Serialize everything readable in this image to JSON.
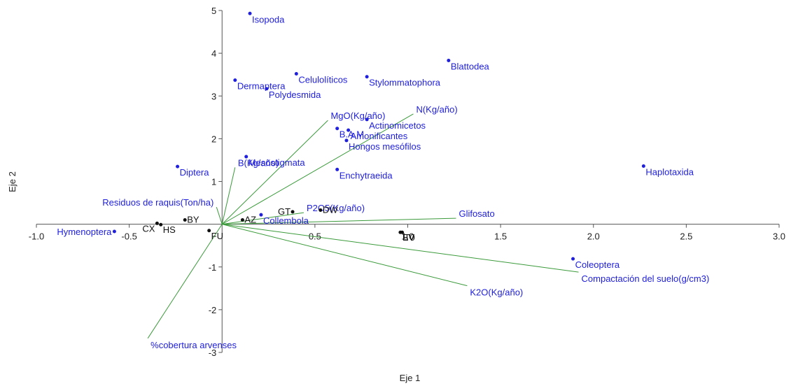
{
  "chart_data": {
    "type": "scatter",
    "title": "",
    "xlabel": "Eje 1",
    "ylabel": "Eje 2",
    "xlim": [
      -1.0,
      3.0
    ],
    "ylim": [
      -3,
      5
    ],
    "x_ticks": [
      "-1.0",
      "-0.5",
      "0.5",
      "1.0",
      "1.5",
      "2.0",
      "2.5",
      "3.0"
    ],
    "x_tick_values": [
      -1.0,
      -0.5,
      0.5,
      1.0,
      1.5,
      2.0,
      2.5,
      3.0
    ],
    "y_ticks": [
      "-3",
      "-2",
      "-1",
      "1",
      "2",
      "3",
      "4",
      "5"
    ],
    "y_tick_values": [
      -3,
      -2,
      -1,
      1,
      2,
      3,
      4,
      5
    ],
    "grid": false,
    "colors": {
      "species": "#2020dd",
      "sites": "#111111",
      "vectors": "#3a9a3a",
      "axes": "#555555"
    },
    "species": [
      {
        "label": "Isopoda",
        "x": 0.15,
        "y": 4.93
      },
      {
        "label": "Blattodea",
        "x": 1.22,
        "y": 3.83
      },
      {
        "label": "Dermaptera",
        "x": 0.07,
        "y": 3.37
      },
      {
        "label": "Celulolíticos",
        "x": 0.4,
        "y": 3.52
      },
      {
        "label": "Stylommatophora",
        "x": 0.78,
        "y": 3.45
      },
      {
        "label": "Polydesmida",
        "x": 0.24,
        "y": 3.17
      },
      {
        "label": "Actinomicetos",
        "x": 0.78,
        "y": 2.45
      },
      {
        "label": "B.A.M",
        "x": 0.62,
        "y": 2.24
      },
      {
        "label": "Amonificantes",
        "x": 0.68,
        "y": 2.2
      },
      {
        "label": "Hongos mesófilos",
        "x": 0.67,
        "y": 1.96
      },
      {
        "label": "Mesostigmata",
        "x": 0.13,
        "y": 1.58
      },
      {
        "label": "Diptera",
        "x": -0.24,
        "y": 1.35
      },
      {
        "label": "Enchytraeida",
        "x": 0.62,
        "y": 1.28
      },
      {
        "label": "Haplotaxida",
        "x": 2.27,
        "y": 1.36
      },
      {
        "label": "Collembola",
        "x": 0.21,
        "y": 0.22
      },
      {
        "label": "Hymenoptera",
        "x": -0.58,
        "y": -0.17
      },
      {
        "label": "Coleoptera",
        "x": 1.89,
        "y": -0.81
      }
    ],
    "sites": [
      {
        "label": "DW",
        "x": 0.53,
        "y": 0.33
      },
      {
        "label": "GT",
        "x": 0.38,
        "y": 0.29
      },
      {
        "label": "AZ",
        "x": 0.11,
        "y": 0.1
      },
      {
        "label": "BY",
        "x": -0.2,
        "y": 0.1
      },
      {
        "label": "CX",
        "x": -0.35,
        "y": 0.02
      },
      {
        "label": "HS",
        "x": -0.33,
        "y": -0.01
      },
      {
        "label": "FU",
        "x": -0.07,
        "y": -0.15
      },
      {
        "label": "EV",
        "x": 0.96,
        "y": -0.19
      },
      {
        "label": "T0",
        "x": 0.97,
        "y": -0.19
      }
    ],
    "vectors": [
      {
        "label": "N(Kg/año)",
        "x": 1.03,
        "y": 2.58
      },
      {
        "label": "MgO(Kg/año)",
        "x": 0.57,
        "y": 2.43
      },
      {
        "label": "B(Kg/año)",
        "x": 0.07,
        "y": 1.33
      },
      {
        "label": "Residuos de raquis(Ton/ha)",
        "x": -0.03,
        "y": 0.4
      },
      {
        "label": "P2O5(Kg/año)",
        "x": 0.44,
        "y": 0.27
      },
      {
        "label": "Glifosato",
        "x": 1.26,
        "y": 0.14
      },
      {
        "label": "Compactación del suelo(g/cm3)",
        "x": 1.92,
        "y": -1.12
      },
      {
        "label": "K2O(Kg/año)",
        "x": 1.32,
        "y": -1.44
      },
      {
        "label": "%cobertura arvenses",
        "x": -0.4,
        "y": -2.67
      }
    ]
  }
}
